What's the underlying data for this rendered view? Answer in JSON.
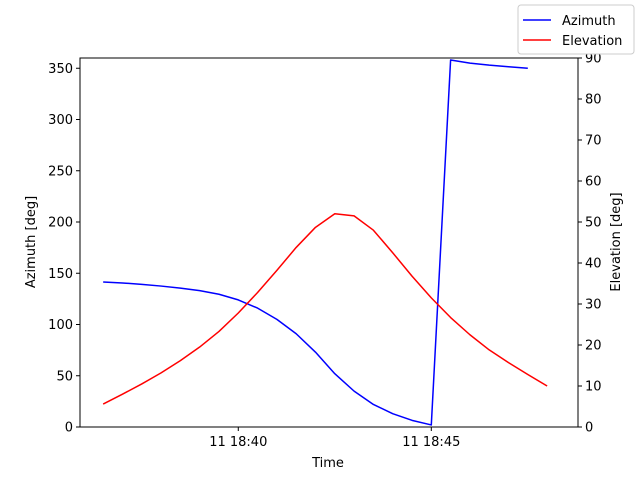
{
  "chart_data": {
    "type": "line",
    "title": "",
    "xlabel": "Time",
    "ylabel_left": "Azimuth [deg]",
    "ylabel_right": "Elevation [deg]",
    "x_minutes_ticks": [
      {
        "minute": 40,
        "label": "11 18:40"
      },
      {
        "minute": 45,
        "label": "11 18:45"
      }
    ],
    "xlim_minutes": [
      35.9,
      48.8
    ],
    "ylim_left": [
      0,
      360
    ],
    "ylim_right": [
      0,
      90
    ],
    "left_ticks": [
      0,
      50,
      100,
      150,
      200,
      250,
      300,
      350
    ],
    "right_ticks": [
      0,
      10,
      20,
      30,
      40,
      50,
      60,
      70,
      80,
      90
    ],
    "legend_position": "top-right",
    "series": [
      {
        "name": "Azimuth",
        "axis": "left",
        "color": "#0000ff",
        "points": [
          [
            36.5,
            141.5
          ],
          [
            37.0,
            140.5
          ],
          [
            37.5,
            139.2
          ],
          [
            38.0,
            137.5
          ],
          [
            38.5,
            135.5
          ],
          [
            39.0,
            133.0
          ],
          [
            39.5,
            129.5
          ],
          [
            40.0,
            124.0
          ],
          [
            40.5,
            116.0
          ],
          [
            41.0,
            105.0
          ],
          [
            41.5,
            91.0
          ],
          [
            42.0,
            73.0
          ],
          [
            42.5,
            52.0
          ],
          [
            43.0,
            35.0
          ],
          [
            43.5,
            22.0
          ],
          [
            44.0,
            13.0
          ],
          [
            44.5,
            6.5
          ],
          [
            45.0,
            2.0
          ],
          [
            45.5,
            358.0
          ],
          [
            46.0,
            355.0
          ],
          [
            46.5,
            353.0
          ],
          [
            47.0,
            351.5
          ],
          [
            47.5,
            350.0
          ]
        ]
      },
      {
        "name": "Elevation",
        "axis": "right",
        "color": "#ff0000",
        "points": [
          [
            36.5,
            5.6
          ],
          [
            37.0,
            8.0
          ],
          [
            37.5,
            10.5
          ],
          [
            38.0,
            13.2
          ],
          [
            38.5,
            16.2
          ],
          [
            39.0,
            19.5
          ],
          [
            39.5,
            23.3
          ],
          [
            40.0,
            27.8
          ],
          [
            40.5,
            32.8
          ],
          [
            41.0,
            38.2
          ],
          [
            41.5,
            43.8
          ],
          [
            42.0,
            48.7
          ],
          [
            42.5,
            52.0
          ],
          [
            43.0,
            51.5
          ],
          [
            43.5,
            48.0
          ],
          [
            44.0,
            42.5
          ],
          [
            44.5,
            36.8
          ],
          [
            45.0,
            31.5
          ],
          [
            45.5,
            26.7
          ],
          [
            46.0,
            22.5
          ],
          [
            46.5,
            18.8
          ],
          [
            47.0,
            15.7
          ],
          [
            47.5,
            12.8
          ],
          [
            48.0,
            10.0
          ]
        ]
      }
    ]
  }
}
